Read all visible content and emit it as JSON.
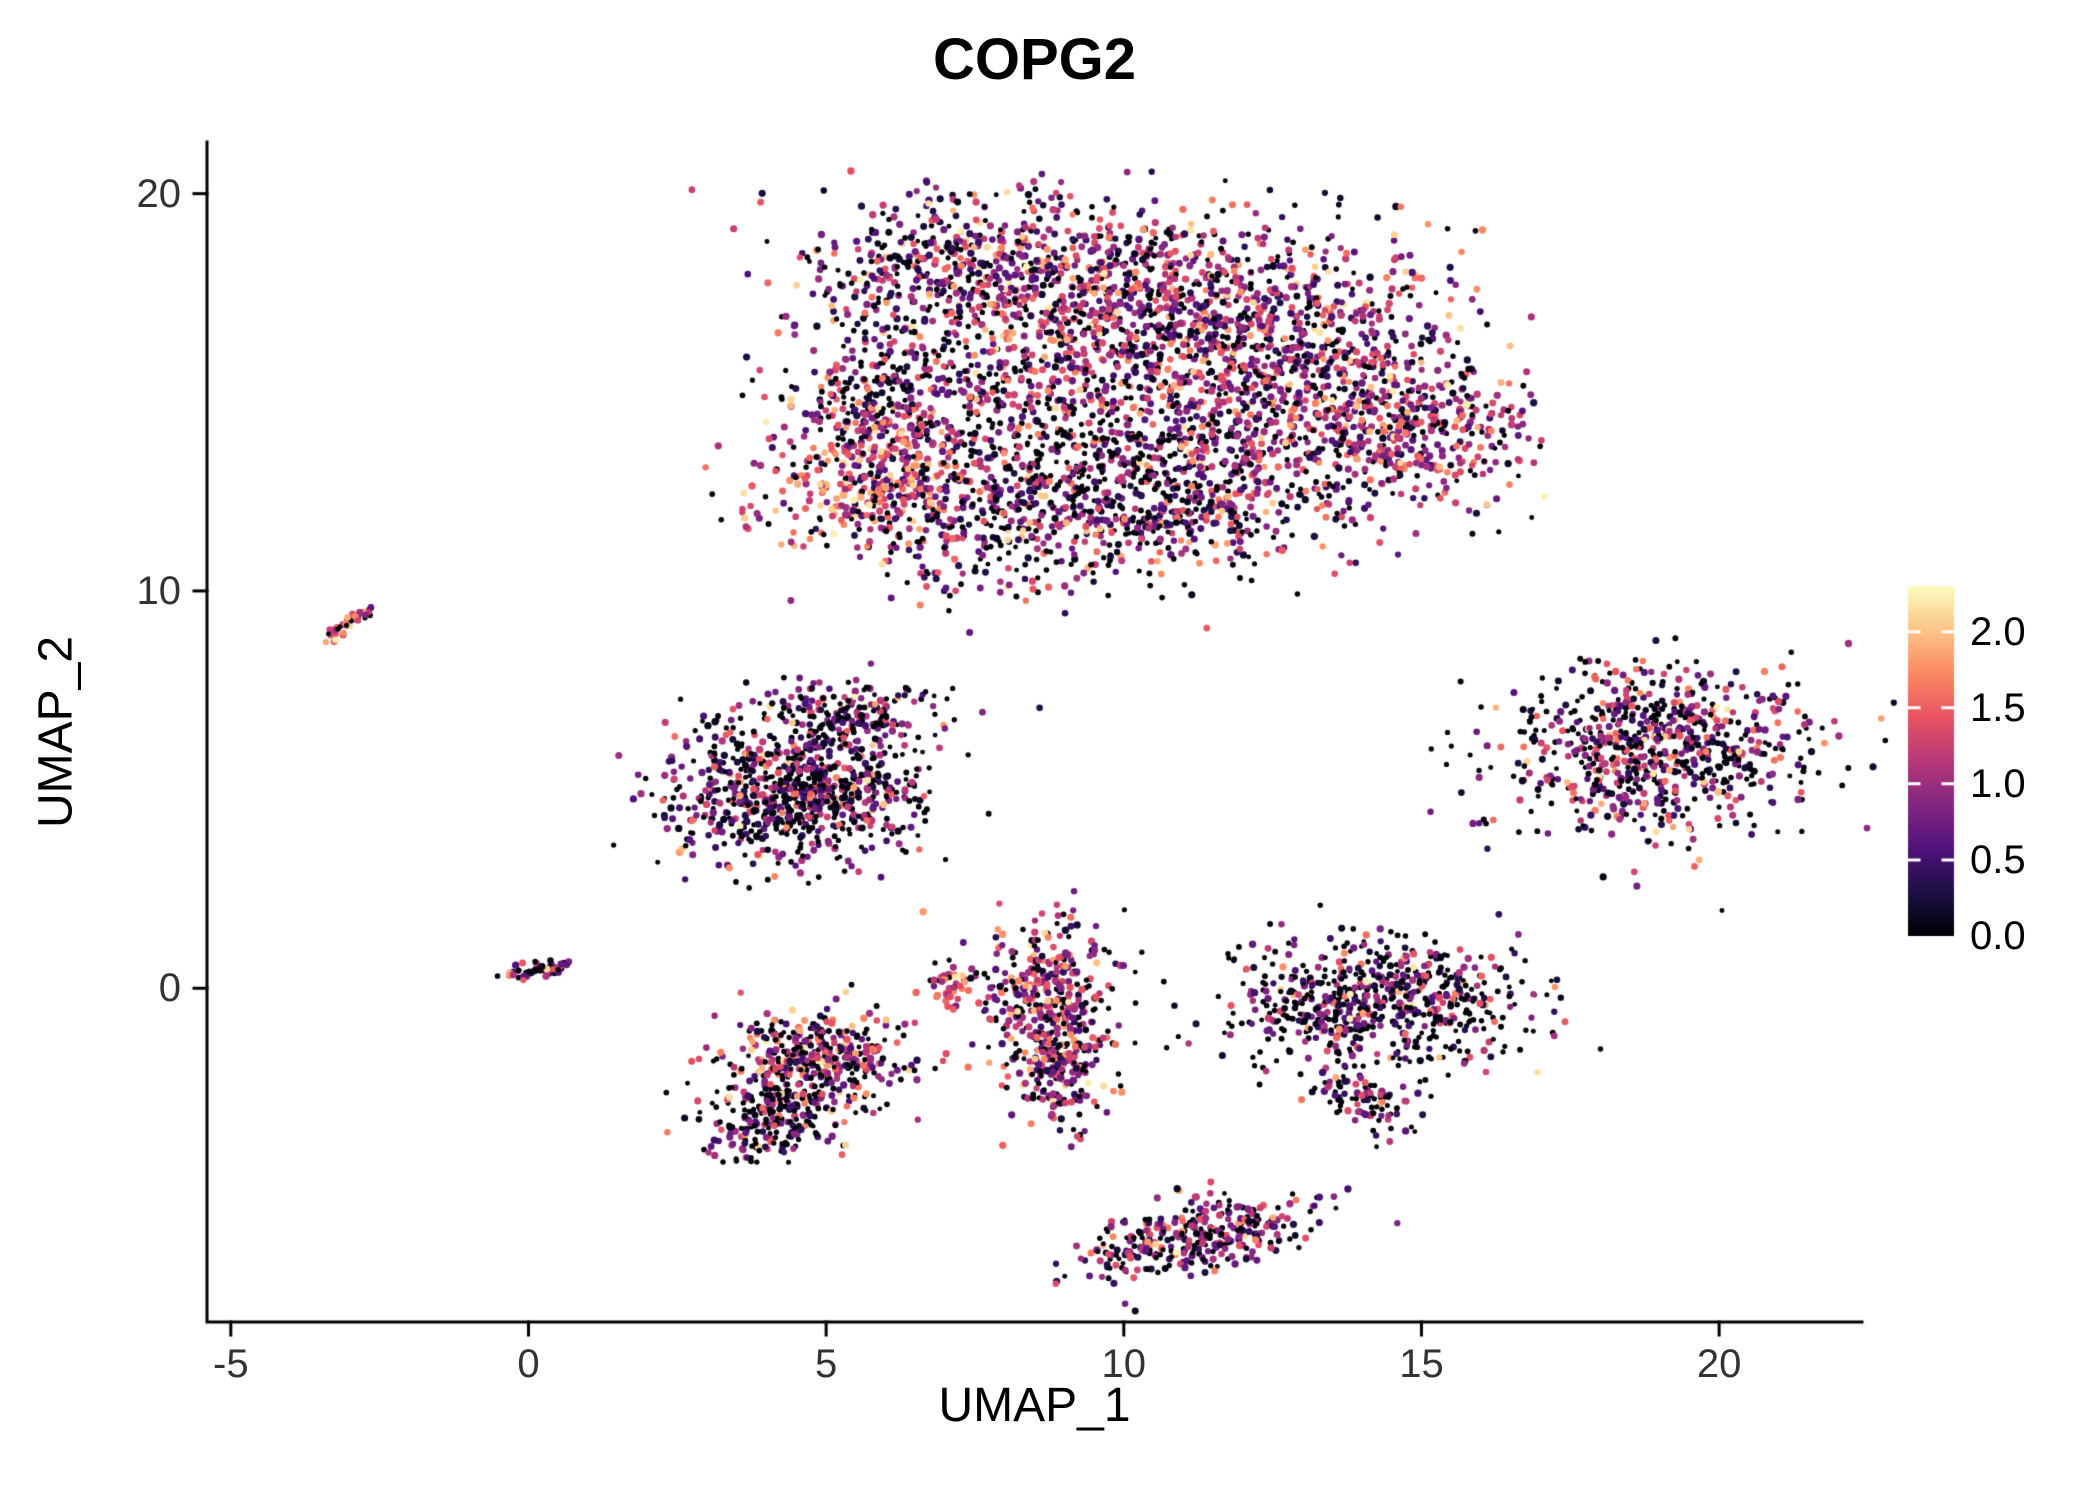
{
  "title": "COPG2",
  "axes": {
    "xlabel": "UMAP_1",
    "ylabel": "UMAP_2",
    "x_ticks": [
      -5,
      0,
      5,
      10,
      15,
      20
    ],
    "y_ticks": [
      0,
      10,
      20
    ]
  },
  "legend": {
    "tick_labels": [
      "2.0",
      "1.5",
      "1.0",
      "0.5",
      "0.0"
    ],
    "tick_values": [
      2.0,
      1.5,
      1.0,
      0.5,
      0.0
    ],
    "vmin": 0.0,
    "vmax": 2.3
  },
  "colors": {
    "background": "#ffffff",
    "axis": "#000000",
    "tick_label": "#333333",
    "legend_tick": "#ffffff"
  },
  "colormap": {
    "name": "magma",
    "stops": [
      [
        0.0,
        "#000004"
      ],
      [
        0.125,
        "#1c1044"
      ],
      [
        0.25,
        "#51127c"
      ],
      [
        0.375,
        "#822681"
      ],
      [
        0.5,
        "#b73779"
      ],
      [
        0.625,
        "#e85362"
      ],
      [
        0.75,
        "#fc8961"
      ],
      [
        0.875,
        "#fec488"
      ],
      [
        1.0,
        "#fcfdbf"
      ]
    ]
  },
  "chart_data": {
    "type": "scatter",
    "title": "COPG2",
    "xlabel": "UMAP_1",
    "ylabel": "UMAP_2",
    "xlim": [
      -5.4,
      22.4
    ],
    "ylim": [
      -8.4,
      21.3
    ],
    "color_scale": "magma",
    "value_range": [
      0.0,
      2.3
    ],
    "seed": 42,
    "gaps": [
      {
        "x1": 6.9,
        "y1": 14.6,
        "x2": 10.4,
        "y2": 12.1,
        "w": 0.22
      }
    ],
    "clusters": [
      {
        "name": "main-top-left",
        "cx": 7.2,
        "cy": 18.2,
        "sx": 1.5,
        "sy": 0.95,
        "n": 450,
        "zero_frac": 0.28,
        "mean": 1.0,
        "spread": 0.55
      },
      {
        "name": "main-top-mid",
        "cx": 10.3,
        "cy": 17.5,
        "sx": 1.9,
        "sy": 1.15,
        "n": 700,
        "zero_frac": 0.25,
        "mean": 1.05,
        "spread": 0.55,
        "avoid_gap": true
      },
      {
        "name": "main-right",
        "cx": 13.2,
        "cy": 15.5,
        "sx": 1.5,
        "sy": 1.4,
        "n": 650,
        "zero_frac": 0.22,
        "mean": 1.1,
        "spread": 0.55
      },
      {
        "name": "main-center",
        "cx": 9.6,
        "cy": 15.1,
        "sx": 2.0,
        "sy": 1.3,
        "n": 600,
        "zero_frac": 0.32,
        "mean": 0.95,
        "spread": 0.55,
        "avoid_gap": true
      },
      {
        "name": "main-left-upper",
        "cx": 6.1,
        "cy": 14.9,
        "sx": 0.95,
        "sy": 1.0,
        "n": 260,
        "zero_frac": 0.35,
        "mean": 0.9,
        "spread": 0.6,
        "avoid_gap": true
      },
      {
        "name": "main-left-lower",
        "cx": 5.9,
        "cy": 12.9,
        "sx": 1.05,
        "sy": 1.0,
        "n": 420,
        "zero_frac": 0.18,
        "mean": 1.35,
        "spread": 0.5
      },
      {
        "name": "main-bottom",
        "cx": 8.3,
        "cy": 11.7,
        "sx": 1.5,
        "sy": 0.85,
        "n": 360,
        "zero_frac": 0.42,
        "mean": 0.9,
        "spread": 0.6
      },
      {
        "name": "main-lower-right",
        "cx": 11.1,
        "cy": 12.5,
        "sx": 1.4,
        "sy": 1.0,
        "n": 450,
        "zero_frac": 0.3,
        "mean": 1.0,
        "spread": 0.55,
        "avoid_gap": true
      },
      {
        "name": "main-far-right",
        "cx": 14.9,
        "cy": 13.9,
        "sx": 0.95,
        "sy": 0.85,
        "n": 280,
        "zero_frac": 0.22,
        "mean": 1.1,
        "spread": 0.5
      },
      {
        "name": "main-sparse-band",
        "cx": 9.2,
        "cy": 13.3,
        "sx": 1.5,
        "sy": 0.6,
        "rot": -0.45,
        "n": 190,
        "zero_frac": 0.72,
        "mean": 0.6,
        "spread": 0.45
      },
      {
        "name": "left-streak",
        "cx": -3.05,
        "cy": 9.15,
        "sx": 0.4,
        "sy": 0.07,
        "rot": 0.85,
        "n": 45,
        "zero_frac": 0.25,
        "mean": 1.3,
        "spread": 0.5
      },
      {
        "name": "mid-left-core",
        "cx": 4.6,
        "cy": 5.0,
        "sx": 1.05,
        "sy": 0.95,
        "n": 820,
        "zero_frac": 0.45,
        "mean": 0.85,
        "spread": 0.6
      },
      {
        "name": "mid-left-top",
        "cx": 5.4,
        "cy": 6.9,
        "sx": 0.75,
        "sy": 0.45,
        "n": 170,
        "zero_frac": 0.45,
        "mean": 0.8,
        "spread": 0.55
      },
      {
        "name": "right-round",
        "cx": 19.0,
        "cy": 6.0,
        "sx": 1.3,
        "sy": 1.0,
        "n": 760,
        "zero_frac": 0.38,
        "mean": 0.95,
        "spread": 0.6
      },
      {
        "name": "tiny-left",
        "cx": 0.2,
        "cy": 0.45,
        "sx": 0.3,
        "sy": 0.1,
        "rot": 0.25,
        "n": 55,
        "zero_frac": 0.3,
        "mean": 0.9,
        "spread": 0.5
      },
      {
        "name": "lower-left-upper",
        "cx": 4.9,
        "cy": -1.6,
        "sx": 0.8,
        "sy": 0.55,
        "n": 310,
        "zero_frac": 0.3,
        "mean": 1.1,
        "spread": 0.55
      },
      {
        "name": "lower-left-lower",
        "cx": 4.25,
        "cy": -3.1,
        "sx": 0.8,
        "sy": 0.55,
        "rot": 0.6,
        "n": 300,
        "zero_frac": 0.5,
        "mean": 0.9,
        "spread": 0.6
      },
      {
        "name": "crescent",
        "cx": 7.05,
        "cy": 0.15,
        "sx": 0.16,
        "sy": 0.32,
        "n": 42,
        "zero_frac": 0.2,
        "mean": 1.4,
        "spread": 0.45
      },
      {
        "name": "crescent-side",
        "cx": 7.75,
        "cy": 0.25,
        "sx": 0.22,
        "sy": 0.12,
        "n": 8,
        "zero_frac": 0.5,
        "mean": 0.8,
        "spread": 0.4
      },
      {
        "name": "mid-vertical-upper",
        "cx": 8.75,
        "cy": -0.1,
        "sx": 0.5,
        "sy": 0.85,
        "n": 300,
        "zero_frac": 0.25,
        "mean": 1.1,
        "spread": 0.55
      },
      {
        "name": "mid-vertical-lower",
        "cx": 8.95,
        "cy": -2.0,
        "sx": 0.42,
        "sy": 0.75,
        "n": 220,
        "zero_frac": 0.3,
        "mean": 1.0,
        "spread": 0.55
      },
      {
        "name": "right-mid",
        "cx": 14.2,
        "cy": -0.35,
        "sx": 1.2,
        "sy": 0.85,
        "n": 650,
        "zero_frac": 0.5,
        "mean": 0.85,
        "spread": 0.6
      },
      {
        "name": "right-mid-hook",
        "cx": 14.0,
        "cy": -2.8,
        "sx": 0.5,
        "sy": 0.28,
        "rot": -0.7,
        "n": 90,
        "zero_frac": 0.35,
        "mean": 0.95,
        "spread": 0.5
      },
      {
        "name": "bottom",
        "cx": 11.2,
        "cy": -6.3,
        "sx": 1.05,
        "sy": 0.42,
        "rot": 0.3,
        "n": 330,
        "zero_frac": 0.35,
        "mean": 0.95,
        "spread": 0.55
      }
    ]
  }
}
